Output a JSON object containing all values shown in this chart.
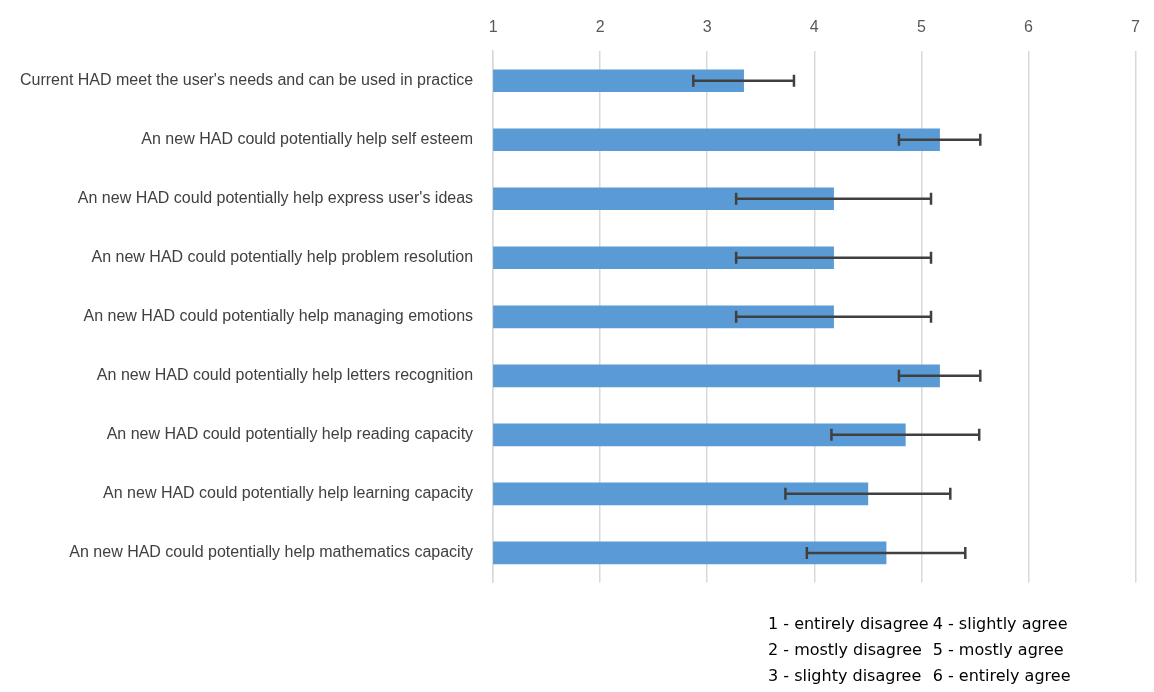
{
  "chart_data": {
    "type": "bar",
    "orientation": "horizontal",
    "categories": [
      "Current HAD meet the user's needs and can be used in practice",
      "An new HAD could potentially help self esteem",
      "An new HAD could potentially help express user's ideas",
      "An new HAD could potentially help problem resolution",
      "An new HAD could potentially help managing emotions",
      "An new HAD could potentially help letters recognition",
      "An new HAD could potentially help reading capacity",
      "An new HAD could potentially help learning capacity",
      "An new HAD could potentially help mathematics capacity"
    ],
    "values": [
      3.34,
      5.17,
      4.18,
      4.18,
      4.18,
      5.17,
      4.85,
      4.5,
      4.67
    ],
    "errors": [
      0.47,
      0.38,
      0.91,
      0.91,
      0.91,
      0.38,
      0.69,
      0.77,
      0.74
    ],
    "color": "#5b9bd5",
    "xlim": [
      1,
      7
    ],
    "xticks": [
      1,
      2,
      3,
      4,
      5,
      6,
      7
    ],
    "grid": "x",
    "legend": false,
    "annotations": [
      "1 - entirely disagree",
      "2 - mostly disagree",
      "3 - slighty disagree",
      "4 - slightly agree",
      "5 - mostly agree",
      "6 - entirely agree"
    ]
  }
}
